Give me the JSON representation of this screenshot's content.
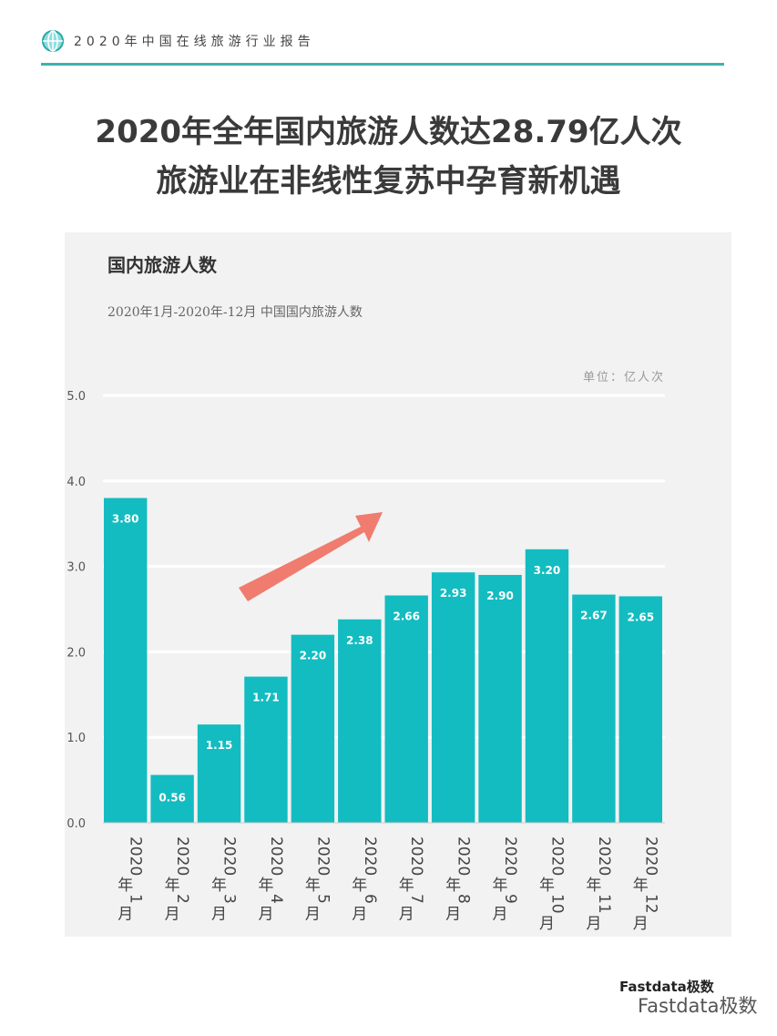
{
  "header": {
    "report_title": "2020年中国在线旅游行业报告",
    "icon": "globe-icon",
    "accent": "#3bb3b0"
  },
  "headline": {
    "line1": "2020年全年国内旅游人数达28.79亿人次",
    "line2": "旅游业在非线性复苏中孕育新机遇"
  },
  "watermark": {
    "logo_text": "Fastdata极数",
    "wechat_text": "Fastdata极数"
  },
  "chart_data": {
    "type": "bar",
    "title": "国内旅游人数",
    "subtitle": "2020年1月-2020年-12月 中国国内旅游人数",
    "unit": "单位：亿人次",
    "categories": [
      "2020年1月",
      "2020年2月",
      "2020年3月",
      "2020年4月",
      "2020年5月",
      "2020年6月",
      "2020年7月",
      "2020年8月",
      "2020年9月",
      "2020年10月",
      "2020年11月",
      "2020年12月"
    ],
    "values": [
      3.8,
      0.56,
      1.15,
      1.71,
      2.2,
      2.38,
      2.66,
      2.93,
      2.9,
      3.2,
      2.67,
      2.65
    ],
    "data_labels": [
      "3.80",
      "0.56",
      "1.15",
      "1.71",
      "2.20",
      "2.38",
      "2.66",
      "2.93",
      "2.90",
      "3.20",
      "2.67",
      "2.65"
    ],
    "yticks": [
      "0.0",
      "1.0",
      "2.0",
      "3.0",
      "4.0",
      "5.0"
    ],
    "ylim": [
      0,
      5
    ],
    "grid": true,
    "bar_color": "#13bcc0",
    "annotation": "upward-trend-arrow",
    "arrow_color": "#f07b6f"
  }
}
